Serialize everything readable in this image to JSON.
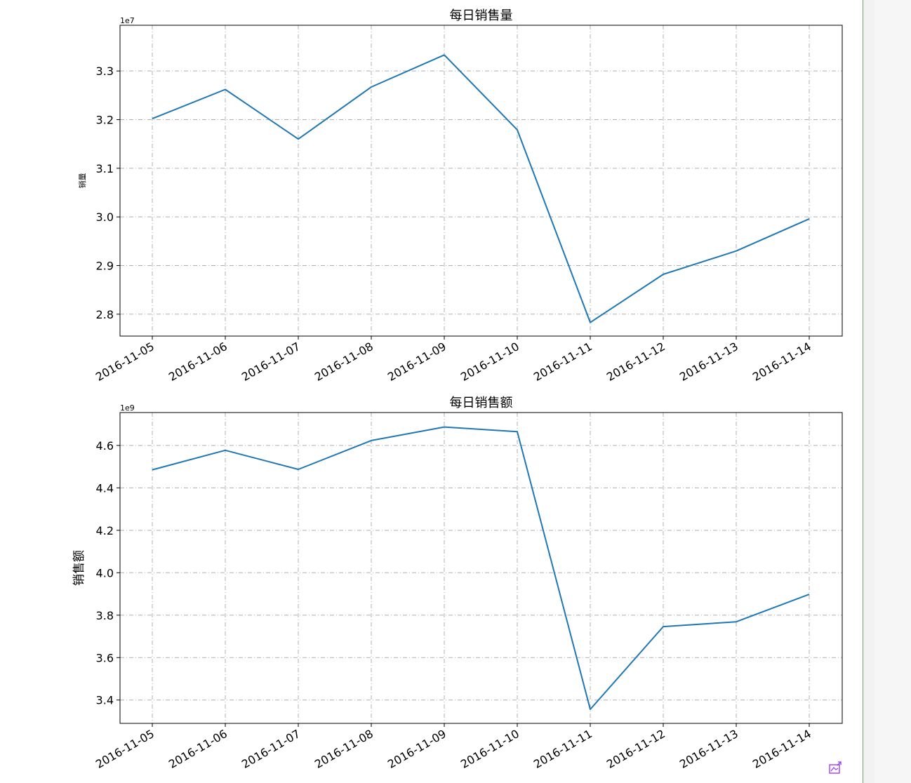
{
  "chart_data": [
    {
      "type": "line",
      "title": "每日销售量",
      "xlabel": "",
      "ylabel": "销量",
      "exponent_label": "1e7",
      "x": [
        "2016-11-05",
        "2016-11-06",
        "2016-11-07",
        "2016-11-08",
        "2016-11-09",
        "2016-11-10",
        "2016-11-11",
        "2016-11-12",
        "2016-11-13",
        "2016-11-14"
      ],
      "y": [
        3.202,
        3.262,
        3.16,
        3.267,
        3.333,
        3.179,
        2.783,
        2.882,
        2.93,
        2.996
      ],
      "y_scale": 10000000,
      "ylim": [
        2.755,
        3.394
      ],
      "yticks": [
        2.8,
        2.9,
        3.0,
        3.1,
        3.2,
        3.3
      ],
      "ytick_labels": [
        "2.8",
        "2.9",
        "3.0",
        "3.1",
        "3.2",
        "3.3"
      ],
      "grid": true,
      "line_color": "#1f77b4",
      "grid_color": "#b0b0b0"
    },
    {
      "type": "line",
      "title": "每日销售额",
      "xlabel": "",
      "ylabel": "销售额",
      "exponent_label": "1e9",
      "x": [
        "2016-11-05",
        "2016-11-06",
        "2016-11-07",
        "2016-11-08",
        "2016-11-09",
        "2016-11-10",
        "2016-11-11",
        "2016-11-12",
        "2016-11-13",
        "2016-11-14"
      ],
      "y": [
        4.485,
        4.577,
        4.487,
        4.623,
        4.687,
        4.665,
        3.356,
        3.746,
        3.769,
        3.898
      ],
      "y_scale": 1000000000,
      "ylim": [
        3.29,
        4.755
      ],
      "yticks": [
        3.4,
        3.6,
        3.8,
        4.0,
        4.2,
        4.4,
        4.6
      ],
      "ytick_labels": [
        "3.4",
        "3.6",
        "3.8",
        "4.0",
        "4.2",
        "4.4",
        "4.6"
      ],
      "grid": true,
      "line_color": "#1f77b4",
      "grid_color": "#b0b0b0"
    }
  ],
  "ui": {
    "save_icon": "save-image-icon",
    "accent": "#9b30ff"
  }
}
